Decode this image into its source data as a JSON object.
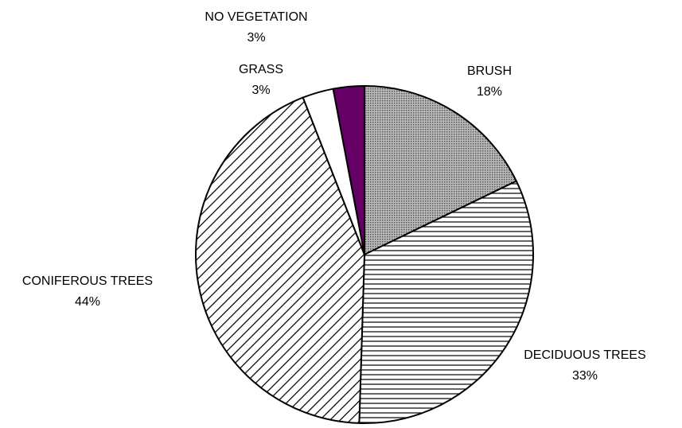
{
  "chart_data": {
    "type": "pie",
    "categories": [
      "BRUSH",
      "DECIDUOUS TREES",
      "CONIFEROUS TREES",
      "GRASS",
      "NO VEGETATION"
    ],
    "values": [
      18,
      33,
      44,
      3,
      3
    ],
    "value_labels": [
      "18%",
      "33%",
      "44%",
      "3%",
      "3%"
    ],
    "colors": [
      "#999999",
      "#ffffff",
      "#ffffff",
      "#ffffff",
      "#660066"
    ],
    "patterns": [
      "dots",
      "horizontal",
      "diagonal",
      "none",
      "none"
    ]
  }
}
